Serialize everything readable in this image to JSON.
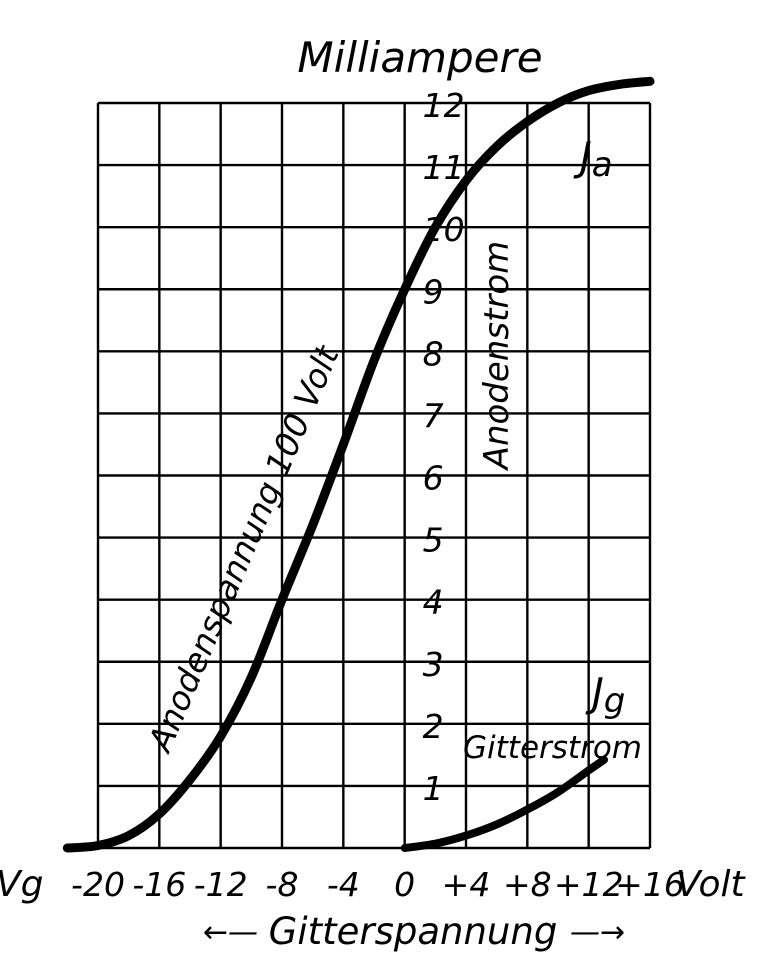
{
  "chart_data": {
    "type": "line",
    "y_unit_label": "Milliampere",
    "x_axis_prefix": "Vg",
    "x_unit_label": "Volt",
    "x_axis_title": "Gitterspannung",
    "x_axis_arrow_left": "←—",
    "x_axis_arrow_right": "—→",
    "x_ticks": [
      "-20",
      "-16",
      "-12",
      "-8",
      "-4",
      "0",
      "+4",
      "+8",
      "+12",
      "+16"
    ],
    "x_tick_values": [
      -20,
      -16,
      -12,
      -8,
      -4,
      0,
      4,
      8,
      12,
      16
    ],
    "y_ticks": [
      "1",
      "2",
      "3",
      "4",
      "5",
      "6",
      "7",
      "8",
      "9",
      "10",
      "11",
      "12"
    ],
    "xlim": [
      -20,
      16
    ],
    "ylim": [
      0,
      12
    ],
    "grid": true,
    "annotations": [
      {
        "text": "Anodenspannung 100 Volt",
        "orientation": "along-curve"
      },
      {
        "text": "Anodenstrom",
        "orientation": "vertical"
      },
      {
        "text": "Gitterstrom",
        "orientation": "horizontal"
      }
    ],
    "series": [
      {
        "name": "Ia",
        "label_main": "J",
        "label_sub": "a",
        "points": [
          [
            -22,
            0
          ],
          [
            -20,
            0.04
          ],
          [
            -18,
            0.2
          ],
          [
            -16,
            0.55
          ],
          [
            -14,
            1.1
          ],
          [
            -12,
            1.8
          ],
          [
            -10,
            2.75
          ],
          [
            -8,
            4.0
          ],
          [
            -6,
            5.2
          ],
          [
            -4,
            6.5
          ],
          [
            -2,
            7.85
          ],
          [
            0,
            9.0
          ],
          [
            2,
            10.0
          ],
          [
            4,
            10.75
          ],
          [
            6,
            11.3
          ],
          [
            8,
            11.7
          ],
          [
            10,
            12.0
          ],
          [
            12,
            12.2
          ],
          [
            14,
            12.3
          ],
          [
            16,
            12.35
          ]
        ]
      },
      {
        "name": "Ig",
        "label_main": "J",
        "label_sub": "g",
        "points": [
          [
            0,
            0
          ],
          [
            2,
            0.07
          ],
          [
            4,
            0.2
          ],
          [
            6,
            0.38
          ],
          [
            8,
            0.62
          ],
          [
            10,
            0.9
          ],
          [
            12,
            1.25
          ],
          [
            13,
            1.42
          ]
        ]
      }
    ]
  }
}
